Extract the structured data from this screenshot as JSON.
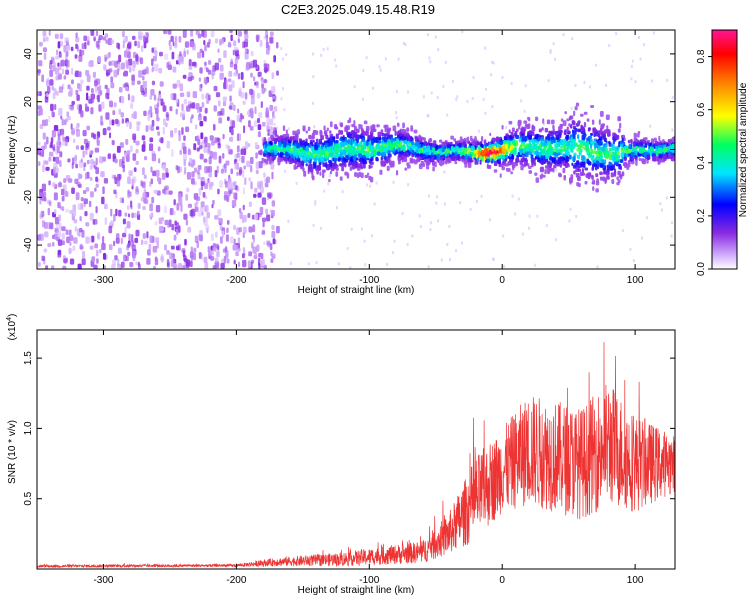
{
  "title": "C2E3.2025.049.15.48.R19",
  "chart_data": [
    {
      "type": "heatmap",
      "xlabel": "Height of straight line (km)",
      "ylabel": "Frequency (Hz)",
      "xlim": [
        -350,
        130
      ],
      "ylim": [
        -50,
        50
      ],
      "xticks": [
        -300,
        -200,
        -100,
        0,
        100
      ],
      "xtick_labels": [
        "-300",
        "-200",
        "-100",
        "0",
        "100"
      ],
      "yticks": [
        -40,
        -20,
        0,
        20,
        40
      ],
      "ytick_labels": [
        "-40",
        "-20",
        "0",
        "20",
        "40"
      ],
      "colorbar": {
        "label": "Normalized spectral amplitude",
        "range": [
          0,
          0.9
        ],
        "ticks": [
          0.0,
          0.2,
          0.4,
          0.6,
          0.8
        ],
        "tick_labels": [
          "0.0",
          "0.2",
          "0.4",
          "0.6",
          "0.8"
        ],
        "colormap": [
          "#ffffff",
          "#d8b8ff",
          "#8a2be2",
          "#0000ff",
          "#00e5ff",
          "#00ff60",
          "#ffff00",
          "#ff8000",
          "#ff0000",
          "#ff1493"
        ]
      },
      "structure": {
        "noise_region_x": [
          -350,
          -180
        ],
        "signal_band_x": [
          -180,
          130
        ],
        "band_center_hz": 0,
        "band_halfwidth_hz": 6,
        "peak_x": -10
      }
    },
    {
      "type": "line",
      "xlabel": "Height of straight line (km)",
      "ylabel": "SNR (10 * v/v)",
      "yscale_label": "(x10",
      "yscale_exp": "4",
      "yscale_close": ")",
      "xlim": [
        -350,
        130
      ],
      "ylim": [
        0,
        1.7
      ],
      "xticks": [
        -300,
        -200,
        -100,
        0,
        100
      ],
      "xtick_labels": [
        "-300",
        "-200",
        "-100",
        "0",
        "100"
      ],
      "yticks": [
        0.5,
        1.0,
        1.5
      ],
      "ytick_labels": [
        "0.5",
        "1.0",
        "1.5"
      ],
      "line_color": "#ee3333",
      "envelope": {
        "x": [
          -350,
          -200,
          -170,
          -120,
          -60,
          -40,
          -20,
          0,
          20,
          40,
          60,
          80,
          100,
          130
        ],
        "y": [
          0.02,
          0.025,
          0.05,
          0.07,
          0.12,
          0.25,
          0.5,
          0.7,
          0.85,
          0.8,
          0.75,
          0.9,
          0.75,
          0.75
        ],
        "amplitude": [
          0.01,
          0.01,
          0.03,
          0.05,
          0.08,
          0.15,
          0.3,
          0.3,
          0.4,
          0.4,
          0.4,
          0.45,
          0.35,
          0.2
        ]
      }
    }
  ]
}
